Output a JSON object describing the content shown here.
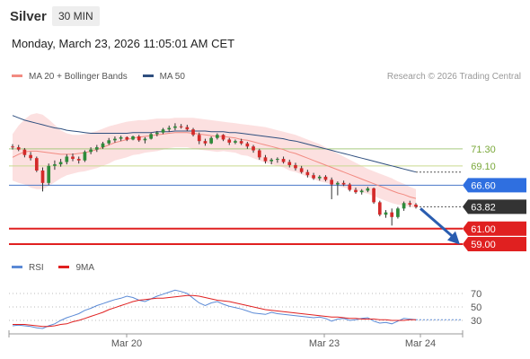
{
  "header": {
    "instrument": "Silver",
    "timeframe": "30 MIN"
  },
  "timestamp": "Monday, March 23, 2026 11:05:01 AM CET",
  "legend": {
    "items": [
      {
        "label": "MA 20 + Bollinger Bands",
        "color": "#f28b82"
      },
      {
        "label": "MA 50",
        "color": "#2f4f7f"
      }
    ],
    "credit": "Research © 2026 Trading Central"
  },
  "rsi_legend": {
    "items": [
      {
        "label": "RSI",
        "color": "#5b8ad6"
      },
      {
        "label": "9MA",
        "color": "#e02020"
      }
    ]
  },
  "chart_data": {
    "type": "candlestick",
    "x_ticks": [
      "Mar 20",
      "Mar 23",
      "Mar 24"
    ],
    "y_range": [
      57.5,
      79.5
    ],
    "levels": [
      {
        "value": 71.3,
        "label": "71.30",
        "kind": "resistance-weak",
        "color": "#a8c97f",
        "text_color": "#7aa83a"
      },
      {
        "value": 69.1,
        "label": "69.10",
        "kind": "resistance-weak",
        "color": "#c9d98f",
        "text_color": "#7aa83a"
      },
      {
        "value": 66.6,
        "label": "66.60",
        "kind": "pivot",
        "color": "#4a78c8",
        "text_color": "#ffffff",
        "badge": "#2f6fe0"
      },
      {
        "value": 63.82,
        "label": "63.82",
        "kind": "last-price",
        "color": "#333333",
        "text_color": "#ffffff",
        "badge": "#333333"
      },
      {
        "value": 61.0,
        "label": "61.00",
        "kind": "support",
        "color": "#e02020",
        "text_color": "#ffffff",
        "badge": "#e02020"
      },
      {
        "value": 59.0,
        "label": "59.00",
        "kind": "support",
        "color": "#e02020",
        "text_color": "#ffffff",
        "badge": "#e02020"
      }
    ],
    "candles": [
      [
        71.6,
        71.9,
        71.2,
        71.5
      ],
      [
        71.5,
        71.8,
        71.0,
        71.2
      ],
      [
        71.2,
        71.4,
        70.2,
        70.5
      ],
      [
        70.5,
        70.9,
        69.8,
        70.1
      ],
      [
        70.1,
        70.3,
        68.3,
        68.5
      ],
      [
        68.5,
        68.9,
        65.8,
        66.9
      ],
      [
        66.9,
        69.4,
        66.6,
        69.1
      ],
      [
        69.1,
        69.8,
        68.6,
        69.3
      ],
      [
        69.3,
        70.0,
        69.0,
        69.6
      ],
      [
        69.6,
        70.6,
        69.3,
        70.3
      ],
      [
        70.3,
        70.7,
        69.7,
        70.0
      ],
      [
        70.0,
        70.3,
        69.4,
        69.8
      ],
      [
        69.8,
        71.1,
        69.6,
        70.9
      ],
      [
        70.9,
        71.5,
        70.6,
        71.2
      ],
      [
        71.2,
        71.8,
        70.9,
        71.5
      ],
      [
        71.5,
        72.2,
        71.3,
        72.0
      ],
      [
        72.0,
        72.7,
        71.8,
        72.4
      ],
      [
        72.4,
        72.9,
        72.1,
        72.6
      ],
      [
        72.6,
        73.0,
        72.3,
        72.8
      ],
      [
        72.8,
        72.9,
        72.3,
        72.5
      ],
      [
        72.5,
        73.0,
        72.4,
        72.9
      ],
      [
        72.9,
        73.1,
        72.2,
        72.4
      ],
      [
        72.4,
        72.8,
        72.0,
        72.6
      ],
      [
        72.6,
        73.4,
        72.5,
        73.2
      ],
      [
        73.2,
        73.6,
        72.9,
        73.4
      ],
      [
        73.4,
        74.0,
        73.2,
        73.8
      ],
      [
        73.8,
        74.3,
        73.5,
        74.0
      ],
      [
        74.0,
        74.6,
        73.7,
        74.2
      ],
      [
        74.2,
        74.5,
        73.9,
        74.1
      ],
      [
        74.1,
        74.4,
        73.6,
        73.8
      ],
      [
        73.8,
        74.0,
        72.9,
        73.1
      ],
      [
        73.1,
        73.4,
        71.9,
        72.3
      ],
      [
        72.3,
        72.6,
        71.7,
        72.0
      ],
      [
        72.0,
        72.9,
        71.9,
        72.7
      ],
      [
        72.7,
        73.3,
        72.5,
        73.1
      ],
      [
        73.1,
        73.2,
        72.3,
        72.5
      ],
      [
        72.5,
        72.7,
        71.8,
        72.1
      ],
      [
        72.1,
        72.5,
        71.9,
        72.3
      ],
      [
        72.3,
        72.6,
        71.8,
        72.0
      ],
      [
        72.0,
        72.2,
        71.3,
        71.6
      ],
      [
        71.6,
        71.8,
        70.8,
        71.1
      ],
      [
        71.1,
        71.3,
        69.9,
        70.2
      ],
      [
        70.2,
        70.5,
        69.4,
        69.7
      ],
      [
        69.7,
        70.1,
        69.3,
        69.9
      ],
      [
        69.9,
        70.2,
        69.5,
        70.0
      ],
      [
        70.0,
        70.3,
        69.4,
        69.6
      ],
      [
        69.6,
        69.9,
        68.9,
        69.2
      ],
      [
        69.2,
        69.5,
        68.5,
        68.8
      ],
      [
        68.8,
        69.1,
        68.1,
        68.3
      ],
      [
        68.3,
        68.6,
        67.6,
        67.9
      ],
      [
        67.9,
        68.2,
        67.3,
        67.5
      ],
      [
        67.5,
        67.9,
        67.2,
        67.7
      ],
      [
        67.7,
        67.9,
        67.1,
        67.3
      ],
      [
        67.3,
        67.6,
        64.8,
        66.7
      ],
      [
        66.7,
        67.1,
        65.3,
        66.9
      ],
      [
        66.9,
        67.2,
        66.5,
        66.7
      ],
      [
        66.7,
        66.9,
        65.8,
        66.0
      ],
      [
        66.0,
        66.3,
        65.5,
        65.7
      ],
      [
        65.7,
        66.1,
        65.4,
        65.9
      ],
      [
        65.9,
        66.4,
        65.7,
        66.2
      ],
      [
        66.2,
        66.3,
        64.2,
        64.4
      ],
      [
        64.4,
        64.6,
        62.6,
        62.8
      ],
      [
        62.8,
        63.4,
        62.4,
        63.1
      ],
      [
        63.1,
        63.6,
        61.4,
        62.5
      ],
      [
        62.5,
        63.8,
        62.3,
        63.6
      ],
      [
        63.6,
        64.5,
        63.3,
        64.3
      ],
      [
        64.3,
        64.6,
        63.8,
        64.1
      ],
      [
        64.1,
        64.3,
        63.6,
        63.82
      ]
    ],
    "ma20": [
      70.2,
      70.6,
      70.9,
      71.0,
      71.0,
      70.9,
      70.8,
      70.7,
      70.6,
      70.6,
      70.6,
      70.7,
      70.8,
      71.0,
      71.2,
      71.5,
      71.8,
      72.1,
      72.3,
      72.5,
      72.7,
      72.8,
      72.9,
      73.0,
      73.1,
      73.2,
      73.3,
      73.4,
      73.4,
      73.4,
      73.3,
      73.2,
      73.1,
      73.0,
      72.9,
      72.9,
      72.8,
      72.7,
      72.5,
      72.4,
      72.2,
      72.0,
      71.8,
      71.6,
      71.4,
      71.2,
      70.9,
      70.7,
      70.4,
      70.1,
      69.8,
      69.5,
      69.2,
      68.9,
      68.6,
      68.3,
      68.0,
      67.7,
      67.4,
      67.1,
      66.8,
      66.5,
      66.2,
      65.9,
      65.6,
      65.4,
      65.1,
      64.9
    ],
    "bb_upper": [
      73.2,
      74.3,
      75.1,
      75.7,
      75.9,
      75.7,
      75.1,
      74.4,
      73.7,
      73.3,
      73.1,
      73.1,
      73.2,
      73.4,
      73.6,
      73.9,
      74.2,
      74.4,
      74.6,
      74.8,
      74.9,
      75.0,
      75.0,
      75.1,
      75.2,
      75.2,
      75.2,
      75.3,
      75.3,
      75.3,
      75.3,
      75.2,
      75.1,
      75.0,
      74.9,
      74.8,
      74.7,
      74.6,
      74.5,
      74.4,
      74.3,
      74.2,
      74.1,
      73.9,
      73.7,
      73.5,
      73.3,
      73.1,
      72.8,
      72.5,
      72.2,
      71.9,
      71.5,
      71.1,
      70.7,
      70.3,
      69.9,
      69.5,
      69.1,
      68.7,
      68.4,
      68.1,
      67.8,
      67.5,
      67.1,
      66.8,
      66.4,
      66.1
    ],
    "bb_lower": [
      67.2,
      66.9,
      66.7,
      66.3,
      66.1,
      66.1,
      66.5,
      67.0,
      67.5,
      67.9,
      68.1,
      68.3,
      68.4,
      68.6,
      68.8,
      69.1,
      69.4,
      69.8,
      70.0,
      70.2,
      70.5,
      70.6,
      70.8,
      70.9,
      71.0,
      71.2,
      71.4,
      71.5,
      71.5,
      71.5,
      71.3,
      71.2,
      71.1,
      71.0,
      70.9,
      71.0,
      70.9,
      70.8,
      70.5,
      70.4,
      70.1,
      69.8,
      69.5,
      69.3,
      69.1,
      68.9,
      68.5,
      68.3,
      68.0,
      67.7,
      67.4,
      67.1,
      66.9,
      66.7,
      66.5,
      66.3,
      66.1,
      65.9,
      65.7,
      65.5,
      65.2,
      64.9,
      64.6,
      64.3,
      64.1,
      64.0,
      63.8,
      63.7
    ],
    "ma50": [
      75.6,
      75.3,
      75.0,
      74.8,
      74.6,
      74.4,
      74.2,
      74.0,
      73.9,
      73.7,
      73.6,
      73.5,
      73.4,
      73.3,
      73.3,
      73.3,
      73.3,
      73.3,
      73.3,
      73.3,
      73.4,
      73.4,
      73.4,
      73.4,
      73.5,
      73.5,
      73.5,
      73.6,
      73.6,
      73.6,
      73.6,
      73.6,
      73.6,
      73.5,
      73.5,
      73.5,
      73.4,
      73.4,
      73.3,
      73.2,
      73.1,
      73.0,
      72.9,
      72.8,
      72.7,
      72.6,
      72.4,
      72.3,
      72.1,
      71.9,
      71.7,
      71.5,
      71.3,
      71.1,
      70.9,
      70.7,
      70.5,
      70.3,
      70.1,
      69.9,
      69.7,
      69.5,
      69.3,
      69.1,
      68.9,
      68.7,
      68.5,
      68.3
    ],
    "rsi": {
      "ticks": [
        70,
        50,
        30
      ],
      "range": [
        10,
        90
      ],
      "rsi": [
        22,
        23,
        22,
        21,
        19,
        18,
        22,
        25,
        30,
        34,
        37,
        40,
        45,
        48,
        52,
        55,
        58,
        61,
        63,
        66,
        64,
        60,
        58,
        62,
        66,
        69,
        72,
        75,
        73,
        70,
        63,
        56,
        52,
        56,
        58,
        54,
        51,
        49,
        47,
        44,
        41,
        40,
        39,
        42,
        40,
        39,
        38,
        37,
        36,
        35,
        34,
        35,
        33,
        29,
        32,
        33,
        30,
        31,
        33,
        34,
        29,
        26,
        27,
        25,
        29,
        33,
        32,
        31
      ],
      "ma9": [
        24,
        24,
        24,
        23,
        22,
        21,
        21,
        22,
        24,
        25,
        28,
        30,
        33,
        36,
        39,
        42,
        46,
        49,
        52,
        55,
        58,
        60,
        61,
        62,
        63,
        63,
        64,
        65,
        66,
        67,
        67,
        66,
        64,
        62,
        60,
        59,
        58,
        56,
        54,
        52,
        50,
        48,
        46,
        45,
        44,
        43,
        42,
        41,
        40,
        39,
        38,
        37,
        36,
        35,
        35,
        34,
        33,
        33,
        32,
        32,
        32,
        31,
        31,
        30,
        30,
        30,
        31,
        31
      ]
    }
  }
}
